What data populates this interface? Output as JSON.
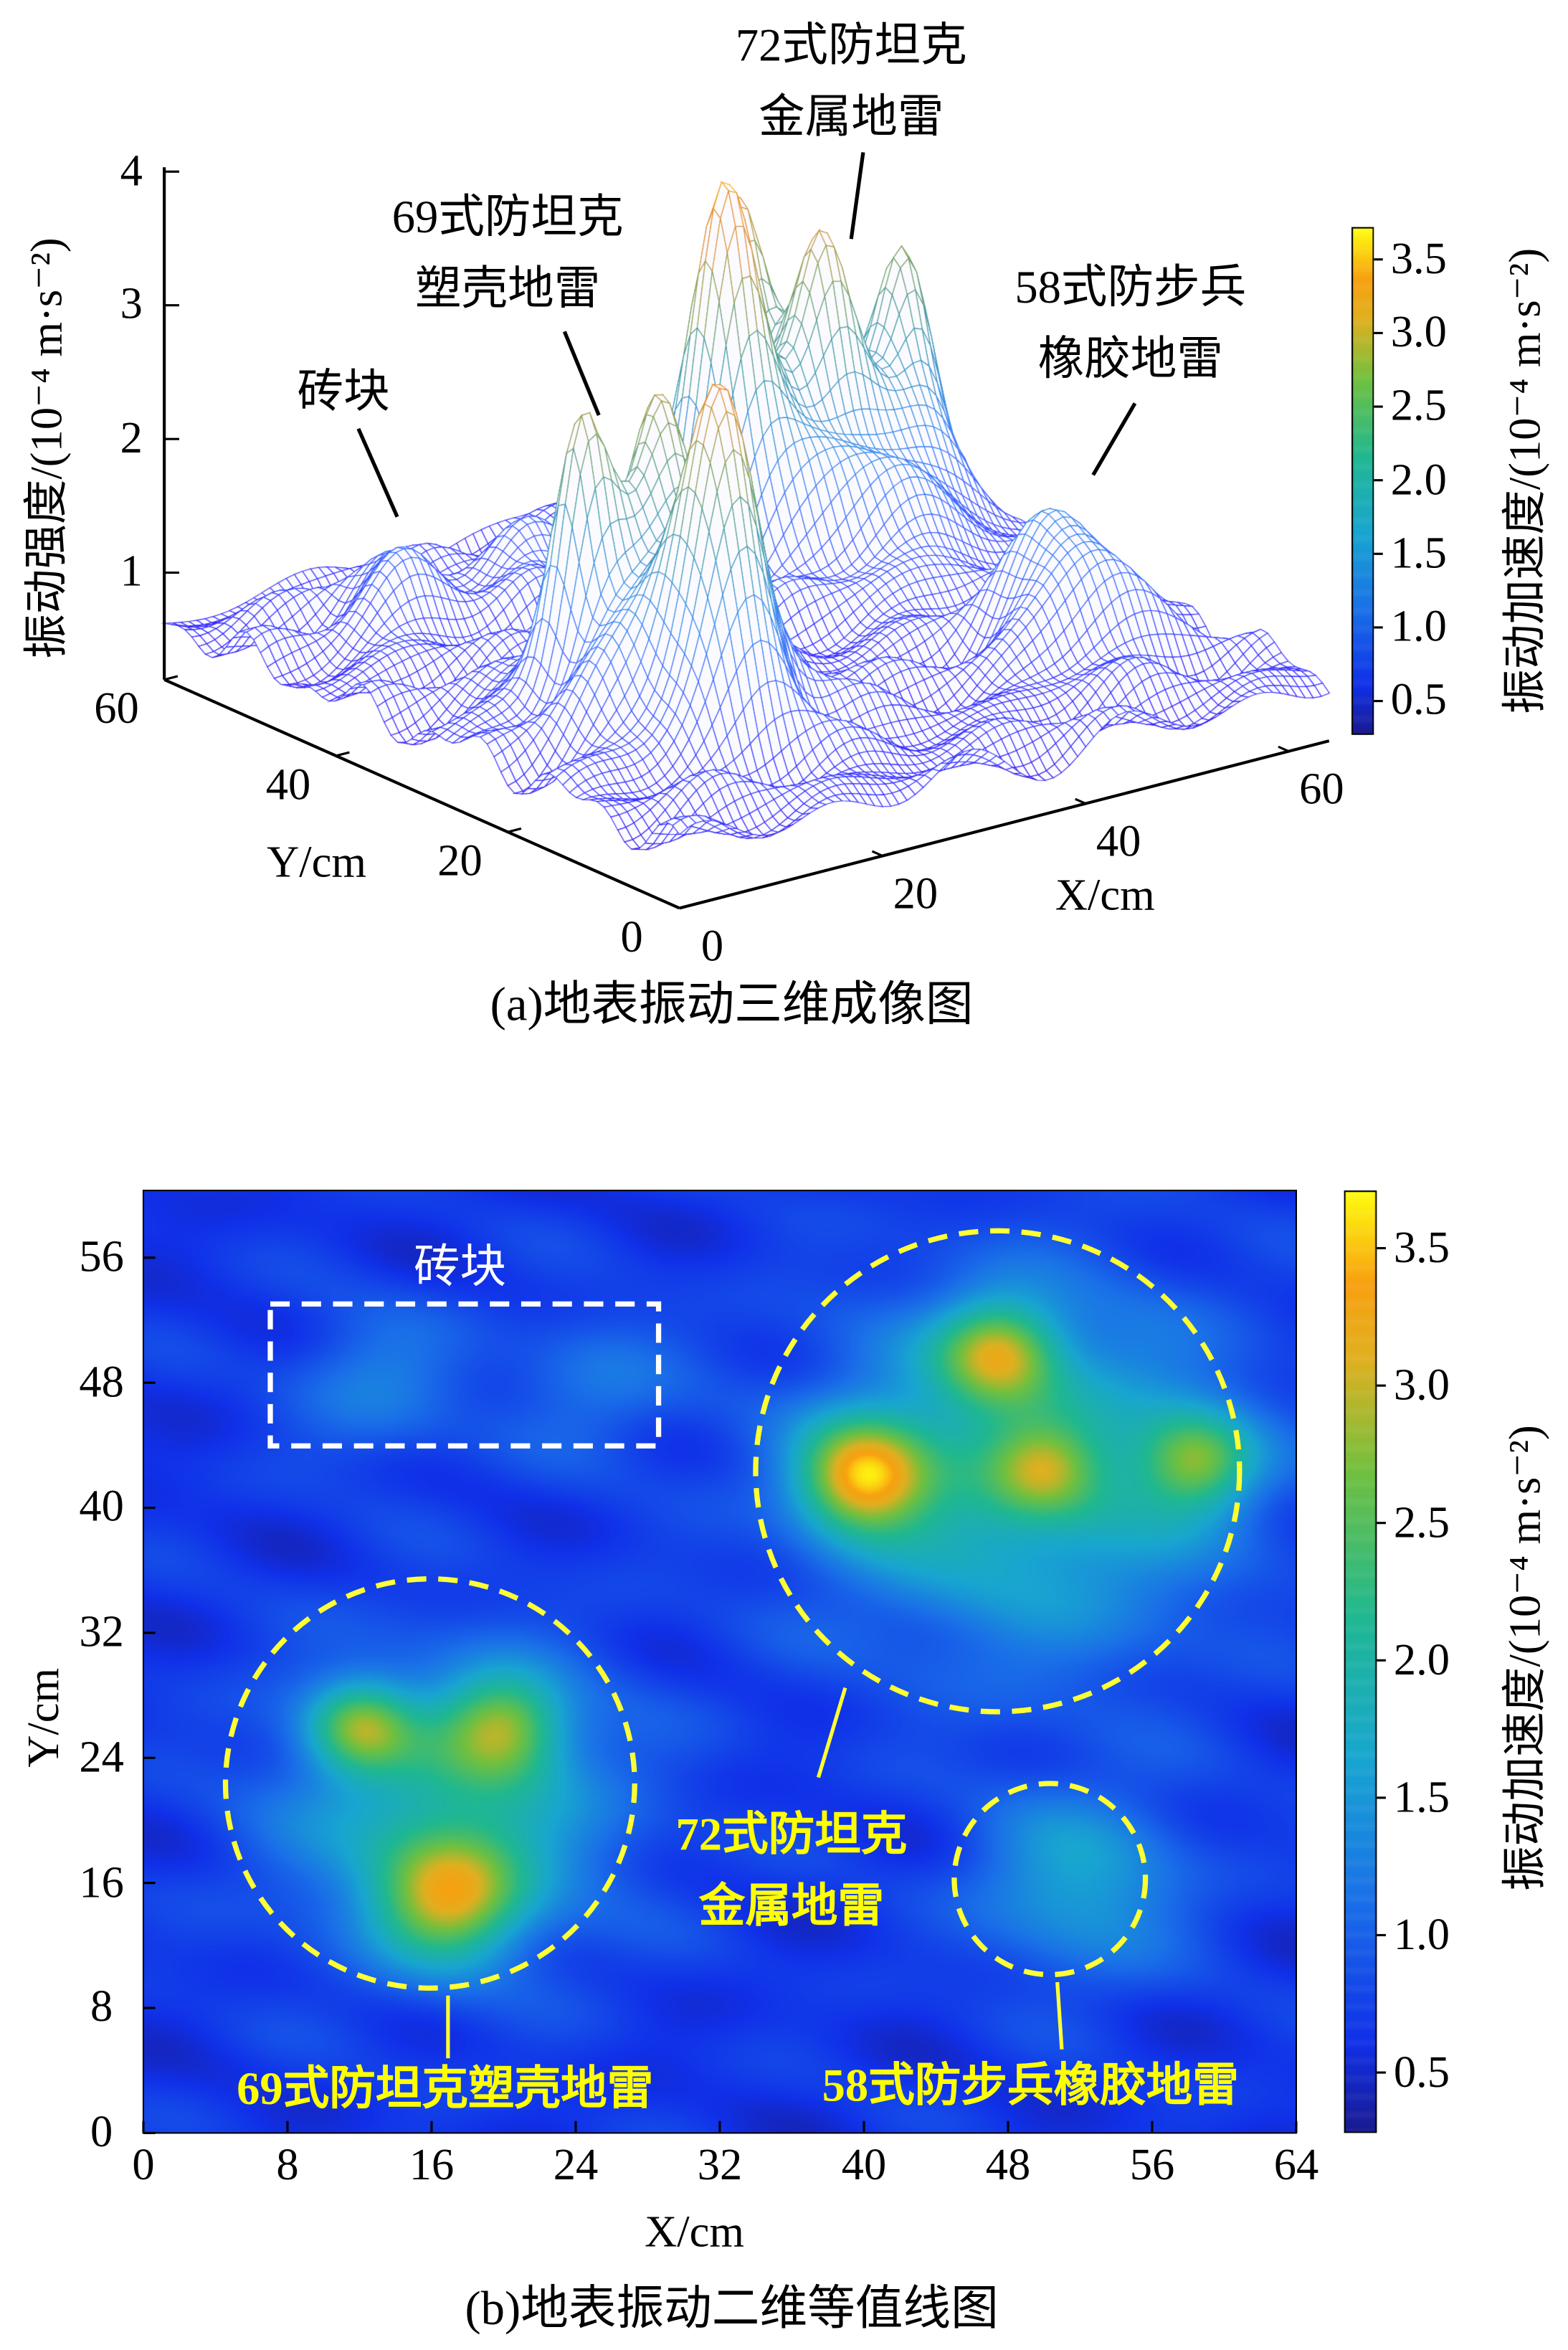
{
  "chart_data": [
    {
      "type": "surface3d",
      "title": "(a)地表振动三维成像图",
      "xlabel": "X/cm",
      "ylabel": "Y/cm",
      "zlabel": "振动强度/(10⁻⁴ m·s⁻²)",
      "x_ticks": [
        "0",
        "20",
        "40",
        "60"
      ],
      "y_ticks": [
        "0",
        "20",
        "40",
        "60"
      ],
      "z_ticks": [
        "1",
        "2",
        "3",
        "4"
      ],
      "xlim": [
        0,
        64
      ],
      "ylim": [
        0,
        60
      ],
      "zlim": [
        0.2,
        4
      ],
      "colorbar": {
        "label": "振动加速度/(10⁻⁴ m·s⁻²)",
        "ticks": [
          "3.5",
          "3.0",
          "2.5",
          "2.0",
          "1.5",
          "1.0",
          "0.5"
        ],
        "range": [
          0.27,
          3.72
        ]
      },
      "annotations": [
        {
          "name": "brick",
          "lines": [
            "砖块"
          ]
        },
        {
          "name": "mine-69",
          "lines": [
            "69式防坦克",
            "塑壳地雷"
          ]
        },
        {
          "name": "mine-72",
          "lines": [
            "72式防坦克",
            "金属地雷"
          ]
        },
        {
          "name": "mine-58",
          "lines": [
            "58式防步兵",
            "橡胶地雷"
          ]
        }
      ]
    },
    {
      "type": "heatmap",
      "title": "(b)地表振动二维等值线图",
      "xlabel": "X/cm",
      "ylabel": "Y/cm",
      "x_ticks": [
        "0",
        "8",
        "16",
        "24",
        "32",
        "40",
        "48",
        "56",
        "64"
      ],
      "y_ticks": [
        "0",
        "8",
        "16",
        "24",
        "32",
        "40",
        "48",
        "56"
      ],
      "xlim": [
        0,
        64
      ],
      "ylim": [
        0,
        60.3
      ],
      "colorbar": {
        "label": "振动加速度/(10⁻⁴ m·s⁻²)",
        "ticks": [
          "3.5",
          "3.0",
          "2.5",
          "2.0",
          "1.5",
          "1.0",
          "0.5"
        ],
        "range": [
          0.28,
          3.71
        ]
      },
      "annotations": [
        {
          "name": "brick",
          "lines": [
            "砖块"
          ],
          "region_cm": {
            "x": [
              7,
              28.5
            ],
            "y": [
              44,
              53
            ]
          }
        },
        {
          "name": "mine-72",
          "lines": [
            "72式防坦克",
            "金属地雷"
          ],
          "circle_cm": {
            "cx": 47.5,
            "cy": 42,
            "rx": 13.4,
            "ry": 15.3
          }
        },
        {
          "name": "mine-69",
          "lines": [
            "69式防坦克塑壳地雷"
          ],
          "circle_cm": {
            "cx": 16.8,
            "cy": 22.5,
            "rx": 11.4,
            "ry": 13
          }
        },
        {
          "name": "mine-58",
          "lines": [
            "58式防步兵橡胶地雷"
          ],
          "circle_cm": {
            "cx": 50.3,
            "cy": 16.2,
            "rx": 5.3,
            "ry": 6.1
          }
        }
      ]
    }
  ],
  "field_model": {
    "base": 0.65,
    "peaks": [
      {
        "target": "mine-72",
        "x": 49,
        "y": 42,
        "amp": 1.4,
        "sigma": 8
      },
      {
        "target": "mine-72",
        "x": 40,
        "y": 42,
        "amp": 2.3,
        "sigma": 2.5
      },
      {
        "target": "mine-72",
        "x": 47.5,
        "y": 50,
        "amp": 1.7,
        "sigma": 2.3
      },
      {
        "target": "mine-72",
        "x": 50,
        "y": 42.5,
        "amp": 0.95,
        "sigma": 2
      },
      {
        "target": "mine-72",
        "x": 58.5,
        "y": 43,
        "amp": 1.55,
        "sigma": 2.2
      },
      {
        "target": "mine-69",
        "x": 17,
        "y": 21,
        "amp": 1.3,
        "sigma": 6.5
      },
      {
        "target": "mine-69",
        "x": 12,
        "y": 26,
        "amp": 1.45,
        "sigma": 2
      },
      {
        "target": "mine-69",
        "x": 20,
        "y": 26,
        "amp": 1.5,
        "sigma": 2.3
      },
      {
        "target": "mine-69",
        "x": 17,
        "y": 15,
        "amp": 1.8,
        "sigma": 2.8
      },
      {
        "target": "mine-58",
        "x": 52,
        "y": 16,
        "amp": 1.0,
        "sigma": 4.2
      },
      {
        "target": "brick",
        "x": 13,
        "y": 48,
        "amp": 0.6,
        "sigma": 3.5
      },
      {
        "target": "brick",
        "x": 25,
        "y": 48,
        "amp": 0.5,
        "sigma": 3.5
      }
    ]
  },
  "colors": {
    "annotation_yellow": "#ffff00",
    "annotation_white": "#ffffff"
  }
}
